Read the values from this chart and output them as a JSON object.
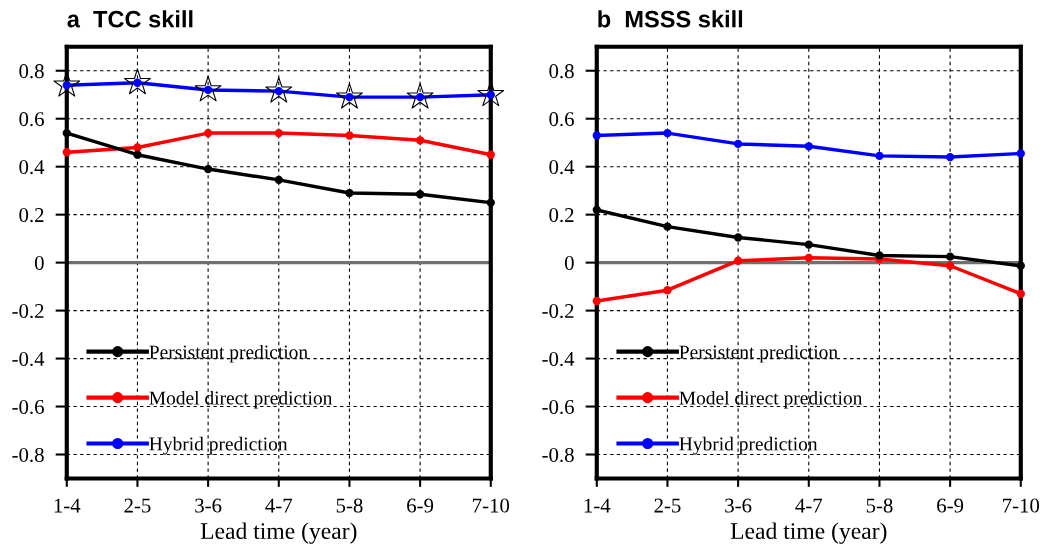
{
  "chart_data": [
    {
      "type": "line",
      "title": "a  TCC skill",
      "xlabel": "Lead time (year)",
      "categories": [
        "1-4",
        "2-5",
        "3-6",
        "4-7",
        "5-8",
        "6-9",
        "7-10"
      ],
      "series": [
        {
          "name": "Persistent prediction",
          "color": "#000000",
          "values": [
            0.54,
            0.45,
            0.39,
            0.345,
            0.29,
            0.285,
            0.25
          ]
        },
        {
          "name": "Model direct prediction",
          "color": "#ff0000",
          "values": [
            0.46,
            0.48,
            0.54,
            0.54,
            0.53,
            0.51,
            0.45
          ]
        },
        {
          "name": "Hybrid prediction",
          "color": "#0000ff",
          "values": [
            0.74,
            0.75,
            0.72,
            0.715,
            0.69,
            0.69,
            0.7
          ]
        },
        {
          "type": "scatter",
          "marker": "star",
          "color": "#000000",
          "x": [
            "1-4",
            "2-5",
            "3-6",
            "4-7",
            "5-8",
            "6-9",
            "7-10"
          ],
          "values": [
            0.74,
            0.75,
            0.72,
            0.715,
            0.69,
            0.69,
            0.7
          ]
        }
      ],
      "ylim": [
        -0.9,
        0.9
      ],
      "yticks": [
        -0.8,
        -0.6,
        -0.4,
        -0.2,
        0,
        0.2,
        0.4,
        0.6,
        0.8
      ],
      "ref_lines": [
        {
          "axis": "y",
          "value": 0,
          "color": "#707070"
        }
      ],
      "grid": true,
      "legend": "bottom left",
      "marker": "circle",
      "line_style": "solid"
    },
    {
      "type": "line",
      "title": "b  MSSS skill",
      "xlabel": "Lead time (year)",
      "categories": [
        "1-4",
        "2-5",
        "3-6",
        "4-7",
        "5-8",
        "6-9",
        "7-10"
      ],
      "series": [
        {
          "name": "Persistent prediction",
          "color": "#000000",
          "values": [
            0.22,
            0.15,
            0.105,
            0.075,
            0.03,
            0.025,
            -0.013
          ]
        },
        {
          "name": "Model direct prediction",
          "color": "#ff0000",
          "values": [
            -0.16,
            -0.115,
            0.008,
            0.02,
            0.015,
            -0.013,
            -0.13
          ]
        },
        {
          "name": "Hybrid prediction",
          "color": "#0000ff",
          "values": [
            0.53,
            0.54,
            0.495,
            0.485,
            0.445,
            0.44,
            0.455
          ]
        }
      ],
      "ylim": [
        -0.9,
        0.9
      ],
      "yticks": [
        -0.8,
        -0.6,
        -0.4,
        -0.2,
        0,
        0.2,
        0.4,
        0.6,
        0.8
      ],
      "ref_lines": [
        {
          "axis": "y",
          "value": 0,
          "color": "#707070"
        }
      ],
      "grid": true,
      "legend": "bottom left",
      "marker": "circle",
      "line_style": "solid"
    }
  ]
}
